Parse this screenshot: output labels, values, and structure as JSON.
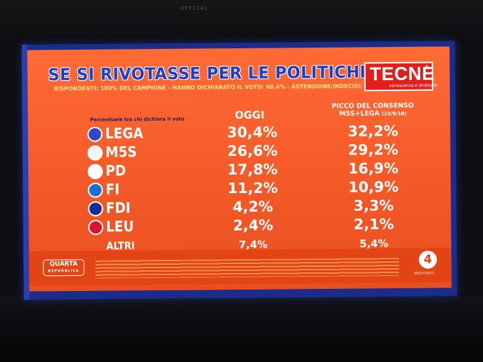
{
  "tv": {
    "label": "OPTICAL"
  },
  "slide": {
    "title": "SE SI RIVOTASSE PER LE POLITICHE",
    "subtitle": "RISPONDENTI: 100% DEL CAMPIONE - HANNO DICHIARATO IL VOTO: 60,4% - ASTENSIONE/INDECISI: 39,6%",
    "logo": {
      "text": "TECNE",
      "tagline": "conoscenza e strategie",
      "reg": "®"
    },
    "columns": {
      "label": "Percentuale tra chi dichiara il voto",
      "today": "OGGI",
      "peak_line1": "PICCO DEL CONSENSO",
      "peak_line2": "M5S+LEGA",
      "peak_date": "(23/9/18)"
    },
    "rows": [
      {
        "party": "LEGA",
        "today": "30,4%",
        "peak": "32,2%"
      },
      {
        "party": "M5S",
        "today": "26,6%",
        "peak": "29,2%"
      },
      {
        "party": "PD",
        "today": "17,8%",
        "peak": "16,9%"
      },
      {
        "party": "FI",
        "today": "11,2%",
        "peak": "10,9%"
      },
      {
        "party": "FDI",
        "today": "4,2%",
        "peak": "3,3%"
      },
      {
        "party": "LEU",
        "today": "2,4%",
        "peak": "2,1%"
      },
      {
        "party": "ALTRI",
        "today": "7,4%",
        "peak": "5,4%"
      }
    ],
    "footer": {
      "show_line1": "QUARTA",
      "show_line2": "REPUBBLICA",
      "channel": "4",
      "network": "MEDIASET"
    }
  }
}
